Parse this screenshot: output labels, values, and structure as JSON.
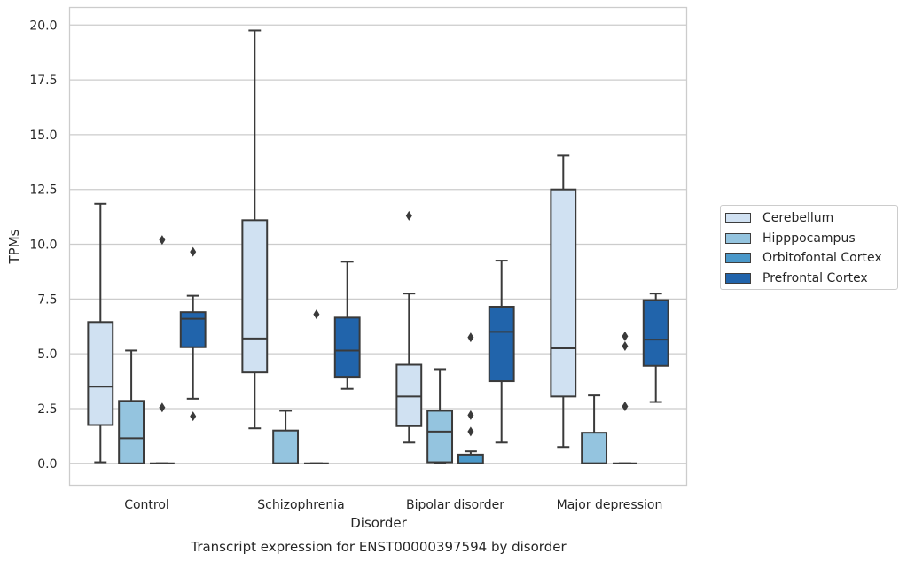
{
  "chart_data": {
    "type": "box",
    "title": "Transcript expression for ENST00000397594 by disorder",
    "xlabel": "Disorder",
    "ylabel": "TPMs",
    "ylim": [
      -1,
      20.8
    ],
    "yticks": [
      "0.0",
      "2.5",
      "5.0",
      "7.5",
      "10.0",
      "12.5",
      "15.0",
      "17.5",
      "20.0"
    ],
    "grid": true,
    "legend_position": "right",
    "categories": [
      "Control",
      "Schizophrenia",
      "Bipolar disorder",
      "Major depression"
    ],
    "series": [
      {
        "name": "Cerebellum",
        "color": "#d0e1f2",
        "boxes": [
          {
            "whislo": 0.05,
            "q1": 1.75,
            "med": 3.5,
            "q3": 6.45,
            "whishi": 11.85,
            "fliers": []
          },
          {
            "whislo": 1.6,
            "q1": 4.15,
            "med": 5.7,
            "q3": 11.1,
            "whishi": 19.75,
            "fliers": []
          },
          {
            "whislo": 0.95,
            "q1": 1.7,
            "med": 3.05,
            "q3": 4.5,
            "whishi": 7.75,
            "fliers": [
              11.3
            ]
          },
          {
            "whislo": 0.75,
            "q1": 3.05,
            "med": 5.25,
            "q3": 12.5,
            "whishi": 14.05,
            "fliers": []
          }
        ]
      },
      {
        "name": "Hipppocampus",
        "color": "#94c4df",
        "boxes": [
          {
            "whislo": 0.0,
            "q1": 0.0,
            "med": 1.15,
            "q3": 2.85,
            "whishi": 5.15,
            "fliers": []
          },
          {
            "whislo": 0.0,
            "q1": 0.0,
            "med": 0.0,
            "q3": 1.5,
            "whishi": 2.4,
            "fliers": []
          },
          {
            "whislo": 0.0,
            "q1": 0.05,
            "med": 1.45,
            "q3": 2.4,
            "whishi": 4.3,
            "fliers": []
          },
          {
            "whislo": 0.0,
            "q1": 0.0,
            "med": 0.0,
            "q3": 1.4,
            "whishi": 3.1,
            "fliers": []
          }
        ]
      },
      {
        "name": "Orbitofontal Cortex",
        "color": "#4a98c9",
        "boxes": [
          {
            "whislo": 0.0,
            "q1": 0.0,
            "med": 0.0,
            "q3": 0.0,
            "whishi": 0.0,
            "fliers": [
              2.55,
              10.2
            ]
          },
          {
            "whislo": 0.0,
            "q1": 0.0,
            "med": 0.0,
            "q3": 0.0,
            "whishi": 0.0,
            "fliers": [
              6.8
            ]
          },
          {
            "whislo": 0.0,
            "q1": 0.0,
            "med": 0.0,
            "q3": 0.4,
            "whishi": 0.55,
            "fliers": [
              1.45,
              2.2,
              5.75
            ]
          },
          {
            "whislo": 0.0,
            "q1": 0.0,
            "med": 0.0,
            "q3": 0.0,
            "whishi": 0.0,
            "fliers": [
              2.6,
              5.35,
              5.8
            ]
          }
        ]
      },
      {
        "name": "Prefrontal Cortex",
        "color": "#2164ab",
        "boxes": [
          {
            "whislo": 2.95,
            "q1": 5.3,
            "med": 6.6,
            "q3": 6.9,
            "whishi": 7.65,
            "fliers": [
              2.15,
              9.65
            ]
          },
          {
            "whislo": 3.4,
            "q1": 3.95,
            "med": 5.15,
            "q3": 6.65,
            "whishi": 9.2,
            "fliers": []
          },
          {
            "whislo": 0.95,
            "q1": 3.75,
            "med": 6.0,
            "q3": 7.15,
            "whishi": 9.25,
            "fliers": []
          },
          {
            "whislo": 2.8,
            "q1": 4.45,
            "med": 5.65,
            "q3": 7.45,
            "whishi": 7.75,
            "fliers": []
          }
        ]
      }
    ]
  }
}
